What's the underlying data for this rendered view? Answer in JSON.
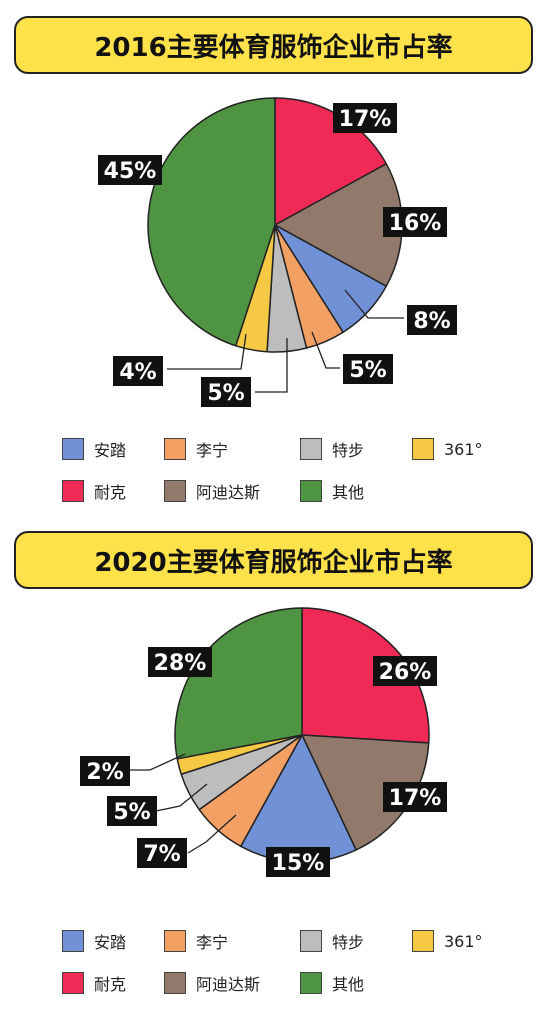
{
  "colors": {
    "anta": "#7091d6",
    "lining": "#f2a064",
    "xtep": "#bdbdbd",
    "c361": "#f6c945",
    "nike": "#ef2a56",
    "adidas": "#917a6c",
    "other": "#4e9443",
    "title_bg": "#ffe14a"
  },
  "legend": [
    {
      "label": "安踏",
      "color": "#7091d6"
    },
    {
      "label": "李宁",
      "color": "#f2a064"
    },
    {
      "label": "特步",
      "color": "#bdbdbd"
    },
    {
      "label": "361°",
      "color": "#f6c945"
    },
    {
      "label": "耐克",
      "color": "#ef2a56"
    },
    {
      "label": "阿迪达斯",
      "color": "#917a6c"
    },
    {
      "label": "其他",
      "color": "#4e9443"
    }
  ],
  "chart_data": [
    {
      "type": "pie",
      "title": "2016主要体育服饰企业市占率",
      "slices": [
        {
          "name": "耐克",
          "value": 17,
          "label": "17%",
          "color": "#ef2a56"
        },
        {
          "name": "阿迪达斯",
          "value": 16,
          "label": "16%",
          "color": "#917a6c"
        },
        {
          "name": "安踏",
          "value": 8,
          "label": "8%",
          "color": "#7091d6"
        },
        {
          "name": "李宁",
          "value": 5,
          "label": "5%",
          "color": "#f2a064"
        },
        {
          "name": "特步",
          "value": 5,
          "label": "5%",
          "color": "#bdbdbd"
        },
        {
          "name": "361°",
          "value": 4,
          "label": "4%",
          "color": "#f6c945"
        },
        {
          "name": "其他",
          "value": 45,
          "label": "45%",
          "color": "#4e9443"
        }
      ]
    },
    {
      "type": "pie",
      "title": "2020主要体育服饰企业市占率",
      "slices": [
        {
          "name": "耐克",
          "value": 26,
          "label": "26%",
          "color": "#ef2a56"
        },
        {
          "name": "阿迪达斯",
          "value": 17,
          "label": "17%",
          "color": "#917a6c"
        },
        {
          "name": "安踏",
          "value": 15,
          "label": "15%",
          "color": "#7091d6"
        },
        {
          "name": "李宁",
          "value": 7,
          "label": "7%",
          "color": "#f2a064"
        },
        {
          "name": "特步",
          "value": 5,
          "label": "5%",
          "color": "#bdbdbd"
        },
        {
          "name": "361°",
          "value": 2,
          "label": "2%",
          "color": "#f6c945"
        },
        {
          "name": "其他",
          "value": 28,
          "label": "28%",
          "color": "#4e9443"
        }
      ]
    }
  ]
}
